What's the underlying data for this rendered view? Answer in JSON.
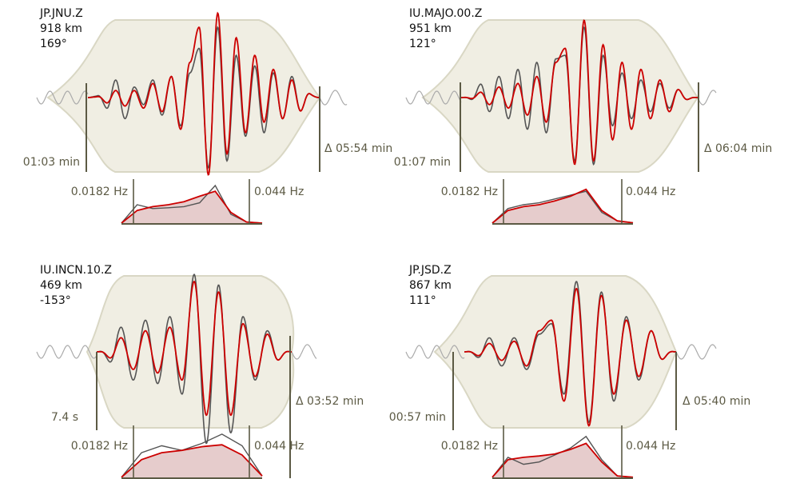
{
  "colors": {
    "taper_fill": "#f0eee3",
    "taper_edge": "#d9d7c4",
    "observed": "#555555",
    "observed_faint": "#aaaaaa",
    "synthetic": "#cc0000",
    "synthetic_faint": "#e8a0a0",
    "spectrum_fill": "#e6cccc",
    "marker": "#5c5a44"
  },
  "chart_data": [
    {
      "type": "line",
      "station": "JP.JNU.Z",
      "distance": "918 km",
      "azimuth": "169°",
      "window_start": "01:03 min",
      "window_length": "Δ 05:54 min",
      "fmin": "0.0182 Hz",
      "fmax": "0.044 Hz",
      "obs_amps": [
        0.2,
        0.1,
        -0.2,
        0.25,
        -0.3,
        0.15,
        -0.1,
        0.25,
        -0.25,
        0.3,
        -0.4,
        0.35,
        0.7,
        -1.0,
        1.0,
        -0.9,
        0.6,
        -0.55,
        0.45,
        -0.5,
        0.35,
        -0.3,
        0.3,
        -0.25,
        0.2,
        0.15
      ],
      "syn_amps": [
        0.1,
        0.05,
        -0.1,
        0.1,
        -0.12,
        0.1,
        -0.15,
        0.2,
        -0.2,
        0.3,
        -0.45,
        0.5,
        1.0,
        -1.1,
        1.2,
        -0.8,
        0.85,
        -0.5,
        0.6,
        -0.35,
        0.4,
        -0.3,
        0.25,
        -0.25,
        0.2,
        0.15
      ],
      "obs_spec": [
        0.02,
        0.5,
        0.4,
        0.42,
        0.45,
        0.55,
        1.0,
        0.25,
        0.05,
        0.02
      ],
      "syn_spec": [
        0.02,
        0.35,
        0.45,
        0.5,
        0.58,
        0.72,
        0.85,
        0.3,
        0.05,
        0.02
      ]
    },
    {
      "type": "line",
      "station": "IU.MAJO.00.Z",
      "distance": "951 km",
      "azimuth": "121°",
      "window_start": "01:07 min",
      "window_length": "Δ 06:04 min",
      "fmin": "0.0182 Hz",
      "fmax": "0.044 Hz",
      "obs_amps": [
        0.15,
        -0.1,
        0.25,
        -0.2,
        0.3,
        -0.3,
        0.4,
        -0.45,
        0.5,
        -0.5,
        0.55,
        0.6,
        -0.9,
        1.0,
        -0.95,
        0.6,
        -0.4,
        0.35,
        -0.3,
        0.25,
        -0.2,
        0.2,
        -0.15,
        0.15,
        -0.1,
        0.1
      ],
      "syn_amps": [
        0.1,
        -0.05,
        0.1,
        -0.1,
        0.15,
        -0.15,
        0.2,
        -0.25,
        0.3,
        -0.35,
        0.5,
        0.7,
        -0.95,
        1.1,
        -0.9,
        0.75,
        -0.6,
        0.5,
        -0.45,
        0.4,
        -0.3,
        0.25,
        -0.2,
        0.15,
        -0.1,
        0.1
      ],
      "obs_spec": [
        0.02,
        0.4,
        0.5,
        0.55,
        0.65,
        0.75,
        0.85,
        0.3,
        0.08,
        0.03
      ],
      "syn_spec": [
        0.02,
        0.35,
        0.45,
        0.5,
        0.6,
        0.72,
        0.9,
        0.35,
        0.08,
        0.03
      ]
    },
    {
      "type": "line",
      "station": "IU.INCN.10.Z",
      "distance": "469 km",
      "azimuth": "-153°",
      "window_start": "7.4 s",
      "window_length": "Δ 03:52 min",
      "fmin": "0.0182 Hz",
      "fmax": "0.044 Hz",
      "obs_amps": [
        0.2,
        -0.25,
        0.35,
        -0.4,
        0.45,
        -0.45,
        0.5,
        -0.6,
        1.1,
        -1.3,
        0.95,
        -1.15,
        0.5,
        -0.4,
        0.3,
        -0.2,
        0.15
      ],
      "syn_amps": [
        0.1,
        -0.15,
        0.2,
        -0.25,
        0.3,
        -0.3,
        0.35,
        -0.4,
        1.0,
        -0.9,
        0.85,
        -0.9,
        0.4,
        -0.35,
        0.25,
        -0.2,
        0.15
      ],
      "obs_spec": [
        0.02,
        0.55,
        0.7,
        0.6,
        0.75,
        0.95,
        0.7,
        0.05
      ],
      "syn_spec": [
        0.02,
        0.4,
        0.55,
        0.6,
        0.68,
        0.72,
        0.5,
        0.05
      ]
    },
    {
      "type": "line",
      "station": "JP.JSD.Z",
      "distance": "867 km",
      "azimuth": "111°",
      "window_start": "00:57 min",
      "window_length": "Δ 05:40 min",
      "fmin": "0.0182 Hz",
      "fmax": "0.044 Hz",
      "obs_amps": [
        0.15,
        -0.15,
        0.2,
        -0.2,
        0.2,
        -0.25,
        0.25,
        0.4,
        -0.6,
        1.0,
        -1.0,
        0.85,
        -0.7,
        0.5,
        -0.4,
        0.3,
        -0.2,
        0.15
      ],
      "syn_amps": [
        0.1,
        -0.1,
        0.12,
        -0.12,
        0.15,
        -0.2,
        0.3,
        0.45,
        -0.7,
        0.9,
        -1.05,
        0.8,
        -0.6,
        0.45,
        -0.35,
        0.3,
        -0.2,
        0.15
      ],
      "obs_spec": [
        0.02,
        0.45,
        0.3,
        0.35,
        0.5,
        0.65,
        0.9,
        0.4,
        0.05,
        0.02
      ],
      "syn_spec": [
        0.02,
        0.4,
        0.45,
        0.48,
        0.52,
        0.62,
        0.75,
        0.35,
        0.05,
        0.02
      ]
    }
  ]
}
